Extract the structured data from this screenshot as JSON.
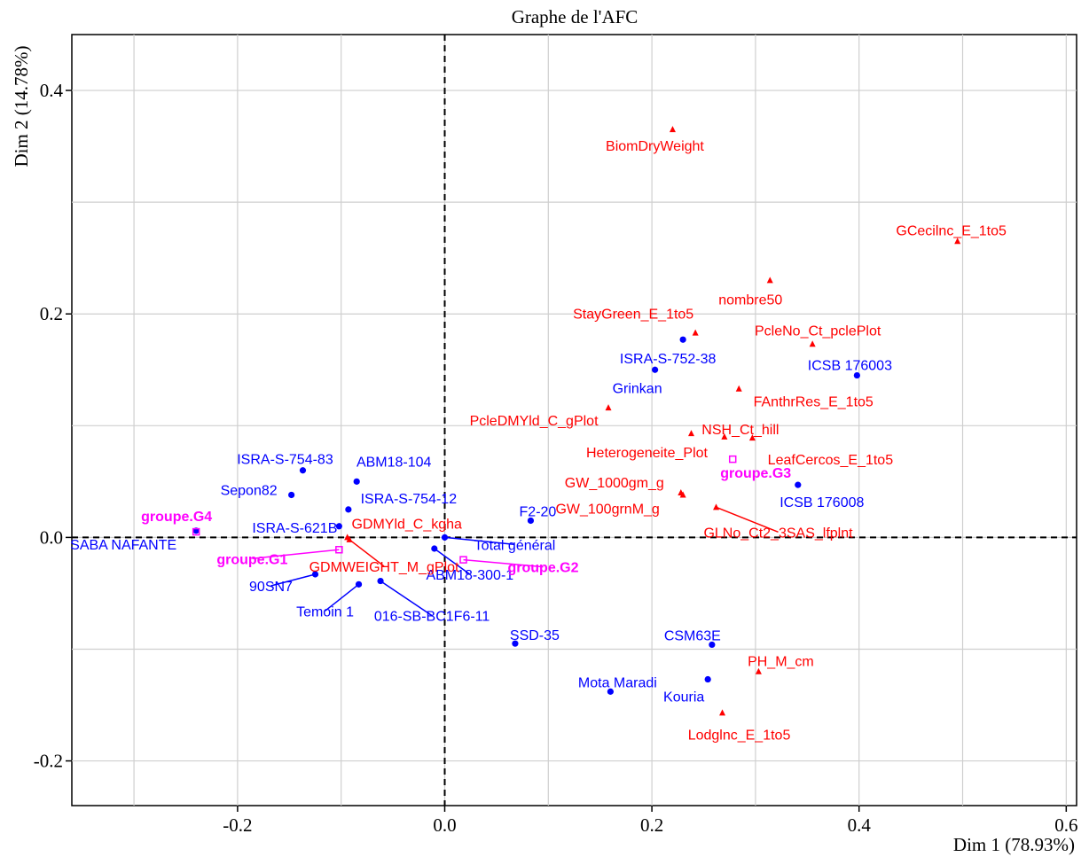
{
  "chart_data": {
    "type": "scatter",
    "title": "Graphe de l'AFC",
    "xlabel": "Dim 1 (78.93%)",
    "ylabel": "Dim 2 (14.78%)",
    "xlim": [
      -0.36,
      0.61
    ],
    "ylim": [
      -0.24,
      0.45
    ],
    "x_ticks": [
      -0.2,
      0.0,
      0.2,
      0.4,
      0.6
    ],
    "y_ticks": [
      -0.2,
      0.0,
      0.2,
      0.4
    ],
    "x_tick_labels": [
      "-0.2",
      "0.0",
      "0.2",
      "0.4",
      "0.6"
    ],
    "y_tick_labels": [
      "-0.2",
      "0.0",
      "0.2",
      "0.4"
    ],
    "grid": true,
    "reference_lines": {
      "x": 0,
      "y": 0,
      "style": "dashed"
    },
    "colors": {
      "row": "#0000ff",
      "column": "#ff0000",
      "group": "#ff00ff"
    },
    "series": [
      {
        "group": "rows",
        "marker": "circle",
        "color": "#0000ff",
        "points": [
          {
            "label": "SABA NAFANTE",
            "x": -0.24,
            "y": 0.006
          },
          {
            "label": "ISRA-S-754-83",
            "x": -0.137,
            "y": 0.06
          },
          {
            "label": "Sepon82",
            "x": -0.148,
            "y": 0.038
          },
          {
            "label": "ISRA-S-621B",
            "x": -0.102,
            "y": 0.01
          },
          {
            "label": "ABM18-104",
            "x": -0.085,
            "y": 0.05
          },
          {
            "label": "ISRA-S-754-12",
            "x": -0.093,
            "y": 0.025
          },
          {
            "label": "90SN7",
            "x": -0.125,
            "y": -0.033
          },
          {
            "label": "Temoin 1",
            "x": -0.083,
            "y": -0.042
          },
          {
            "label": "016-SB-BC1F6-11",
            "x": -0.062,
            "y": -0.039
          },
          {
            "label": "ABM18-300-1",
            "x": -0.01,
            "y": -0.01
          },
          {
            "label": "Total général",
            "x": 0.0,
            "y": 0.0
          },
          {
            "label": "F2-20",
            "x": 0.083,
            "y": 0.015
          },
          {
            "label": "SSD-35",
            "x": 0.068,
            "y": -0.095
          },
          {
            "label": "Mota Maradi",
            "x": 0.16,
            "y": -0.138
          },
          {
            "label": "Grinkan",
            "x": 0.203,
            "y": 0.15
          },
          {
            "label": "ISRA-S-752-38",
            "x": 0.23,
            "y": 0.177
          },
          {
            "label": "CSM63E",
            "x": 0.258,
            "y": -0.096
          },
          {
            "label": "Kouria",
            "x": 0.254,
            "y": -0.127
          },
          {
            "label": "ICSB 176003",
            "x": 0.398,
            "y": 0.145
          },
          {
            "label": "ICSB 176008",
            "x": 0.341,
            "y": 0.047
          }
        ]
      },
      {
        "group": "columns",
        "marker": "triangle",
        "color": "#ff0000",
        "points": [
          {
            "label": "BiomDryWeight",
            "x": 0.22,
            "y": 0.365
          },
          {
            "label": "GCecilnc_E_1to5",
            "x": 0.495,
            "y": 0.265
          },
          {
            "label": "nombre50",
            "x": 0.314,
            "y": 0.23
          },
          {
            "label": "StayGreen_E_1to5",
            "x": 0.242,
            "y": 0.183
          },
          {
            "label": "PcleNo_Ct_pclePlot",
            "x": 0.355,
            "y": 0.173
          },
          {
            "label": "FAnthrRes_E_1to5",
            "x": 0.284,
            "y": 0.133
          },
          {
            "label": "PcleDMYld_C_gPlot",
            "x": 0.158,
            "y": 0.116
          },
          {
            "label": "NSH_Ct_hill",
            "x": 0.27,
            "y": 0.09
          },
          {
            "label": "Heterogeneite_Plot",
            "x": 0.238,
            "y": 0.093
          },
          {
            "label": "LeafCercos_E_1to5",
            "x": 0.297,
            "y": 0.089
          },
          {
            "label": "GW_1000gm_g",
            "x": 0.228,
            "y": 0.04
          },
          {
            "label": "GW_100grnM_g",
            "x": 0.23,
            "y": 0.038
          },
          {
            "label": "GLNo_Ct2_3SAS_lfplnt",
            "x": 0.262,
            "y": 0.027
          },
          {
            "label": "GDMYld_C_kgha",
            "x": -0.094,
            "y": 0.0
          },
          {
            "label": "GDMWEIGHT_M_gPlot",
            "x": -0.092,
            "y": -0.002
          },
          {
            "label": "PH_M_cm",
            "x": 0.303,
            "y": -0.12
          },
          {
            "label": "Lodglnc_E_1to5",
            "x": 0.268,
            "y": -0.157
          }
        ]
      },
      {
        "group": "groups",
        "marker": "square",
        "color": "#ff00ff",
        "points": [
          {
            "label": "groupe.G4",
            "x": -0.24,
            "y": 0.005
          },
          {
            "label": "groupe.G1",
            "x": -0.102,
            "y": -0.011
          },
          {
            "label": "groupe.G2",
            "x": 0.018,
            "y": -0.02
          },
          {
            "label": "groupe.G3",
            "x": 0.278,
            "y": 0.07
          }
        ]
      }
    ]
  }
}
